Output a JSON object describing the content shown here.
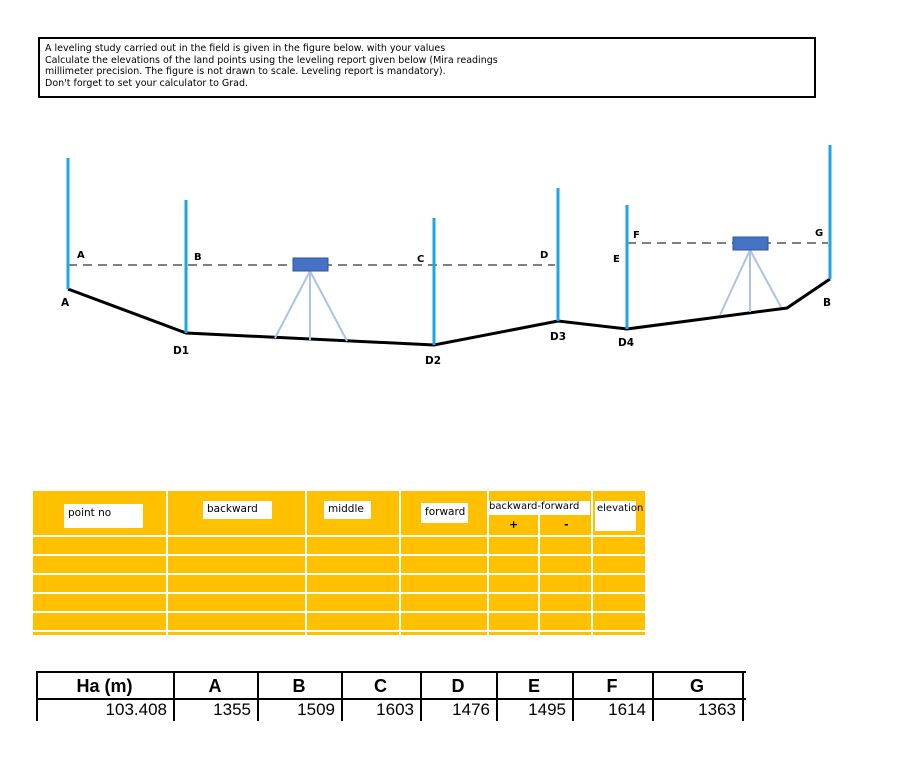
{
  "prompt": {
    "lines": [
      "A leveling study carried out in the field is given in the figure below. with your values",
      "Calculate the elevations of the land points using the leveling report given below (Mira readings",
      "millimeter precision. The figure is not drawn to scale. Leveling report is mandatory).",
      "Don't forget to set your calculator to Grad."
    ]
  },
  "figure": {
    "staff_labels": {
      "A": "A",
      "B": "B",
      "C": "C",
      "D": "D",
      "E": "E",
      "F": "F",
      "G": "G"
    },
    "ground_labels": {
      "A": "A",
      "D1": "D1",
      "D2": "D2",
      "D3": "D3",
      "D4": "D4",
      "B": "B"
    },
    "colors": {
      "staff": "#1ea6e0",
      "instrument": "#4472c4",
      "tripod": "#aac4e6",
      "ground": "#000000",
      "sightline": "#808080"
    }
  },
  "leveling_table": {
    "headers": {
      "point_no": "point no",
      "backward": "backward",
      "middle": "middle",
      "forward": "forward",
      "backward_forward": "backward-forward",
      "elevation": "elevation",
      "plus": "+",
      "minus": "-"
    },
    "background_color": "#ffc000"
  },
  "readings_table": {
    "header_label": "Ha (m)",
    "header_value": "103.408",
    "columns": [
      {
        "point": "A",
        "reading": "1355"
      },
      {
        "point": "B",
        "reading": "1509"
      },
      {
        "point": "C",
        "reading": "1603"
      },
      {
        "point": "D",
        "reading": "1476"
      },
      {
        "point": "E",
        "reading": "1495"
      },
      {
        "point": "F",
        "reading": "1614"
      },
      {
        "point": "G",
        "reading": "1363"
      }
    ]
  }
}
